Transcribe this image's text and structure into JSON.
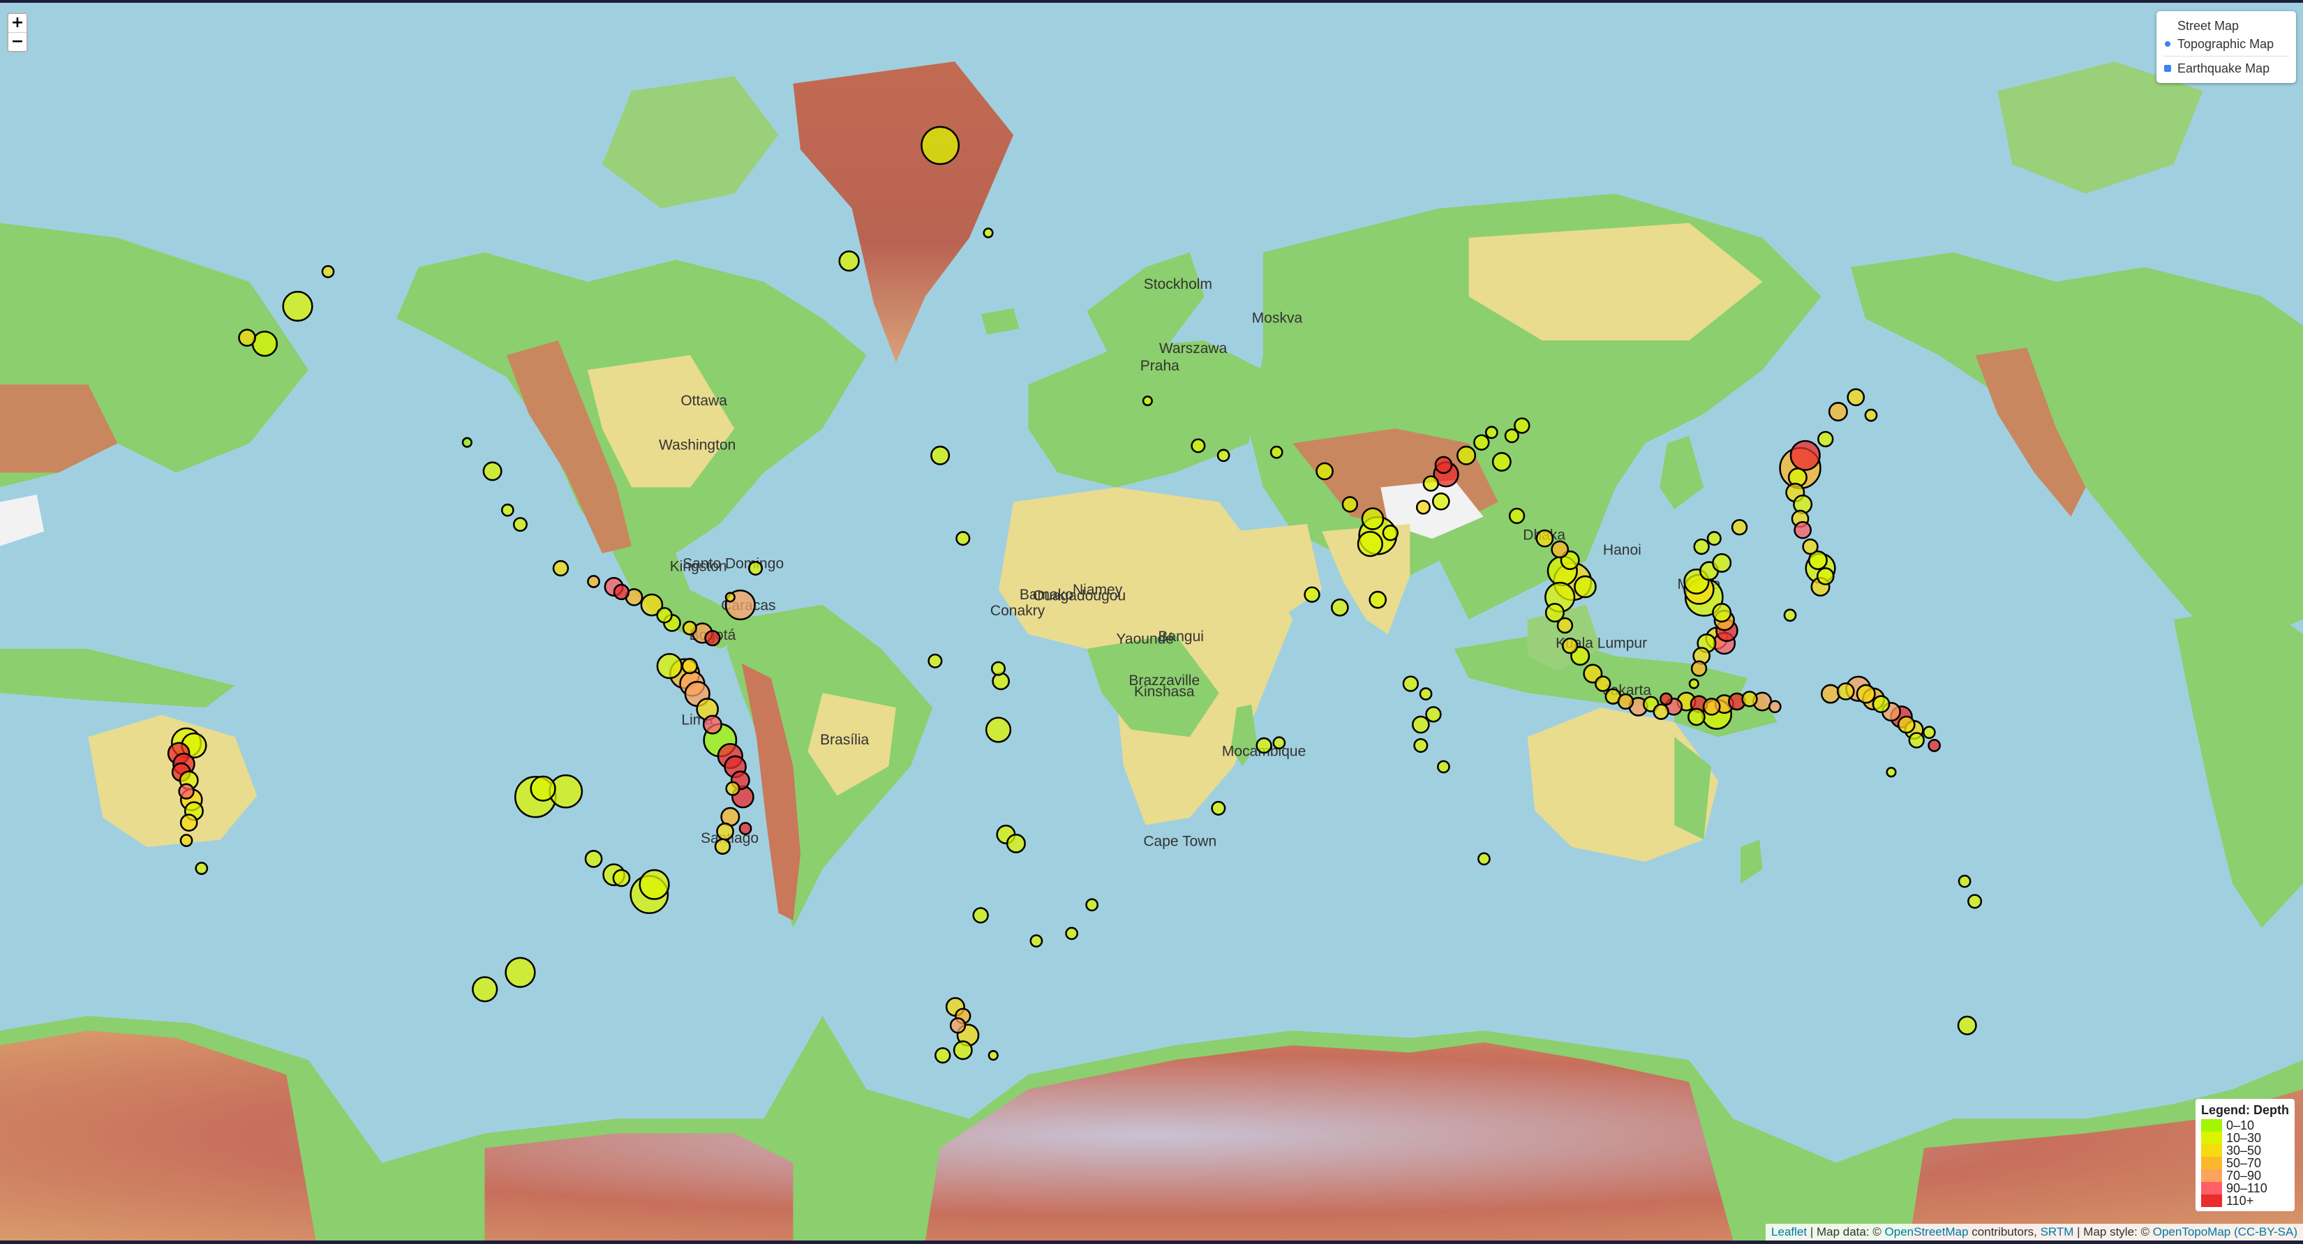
{
  "zoom": {
    "in_label": "+",
    "out_label": "−"
  },
  "layers": {
    "base": [
      {
        "label": "Street Map",
        "selected": false
      },
      {
        "label": "Topographic Map",
        "selected": true
      }
    ],
    "overlays": [
      {
        "label": "Earthquake Map",
        "checked": true
      }
    ]
  },
  "legend": {
    "title": "Legend: Depth",
    "items": [
      {
        "label": "0–10",
        "color": "#a3f600"
      },
      {
        "label": "10–30",
        "color": "#dcf400"
      },
      {
        "label": "30–50",
        "color": "#f7db11"
      },
      {
        "label": "50–70",
        "color": "#fdb72a"
      },
      {
        "label": "70–90",
        "color": "#fca35d"
      },
      {
        "label": "90–110",
        "color": "#ff5f65"
      },
      {
        "label": "110+",
        "color": "#ea2c2c"
      }
    ]
  },
  "attribution": {
    "leaflet": "Leaflet",
    "sep1": " | Map data: © ",
    "osm": "OpenStreetMap",
    "contrib": " contributors, ",
    "srtm": "SRTM",
    "sep2": " | Map style: © ",
    "otm": "OpenTopoMap",
    "license": "(CC-BY-SA)"
  },
  "city_labels": [
    "Bamako",
    "Niamey",
    "Ouagadougou",
    "Conakry",
    "Bangui",
    "Yaoundé",
    "Brazzaville",
    "Kinshasa",
    "Cape Town",
    "Mocambique",
    "Ottawa",
    "Washington",
    "Brasília",
    "Santiago",
    "Lima",
    "Bogotá",
    "Caracas",
    "Kingston",
    "Santo Domingo",
    "Stockholm",
    "Moskva",
    "Warszawa",
    "Praha",
    "Kuala Lumpur",
    "Jakarta",
    "Manila",
    "Dhaka",
    "Hanoi"
  ],
  "colors": {
    "ocean": "#a0d0e0",
    "land_low": "#8ccf6e",
    "land_mid": "#e9dc8f",
    "land_high": "#c9785a",
    "ice": "#f2f2f2"
  },
  "quakes": [
    {
      "lon": -166.0,
      "lat": 54.0,
      "mag": 4.5,
      "depth": 35
    },
    {
      "lon": -162.5,
      "lat": 53.3,
      "mag": 5.0,
      "depth": 20
    },
    {
      "lon": -150.0,
      "lat": 61.0,
      "mag": 4.2,
      "depth": 40
    },
    {
      "lon": -156.0,
      "lat": 57.5,
      "mag": 5.3,
      "depth": 15
    },
    {
      "lon": -122.5,
      "lat": 40.0,
      "mag": 4.0,
      "depth": 8
    },
    {
      "lon": -117.5,
      "lat": 35.5,
      "mag": 4.6,
      "depth": 12
    },
    {
      "lon": -114.5,
      "lat": 29.0,
      "mag": 4.2,
      "depth": 10
    },
    {
      "lon": -112.0,
      "lat": 26.5,
      "mag": 4.3,
      "depth": 10
    },
    {
      "lon": -104.0,
      "lat": 18.5,
      "mag": 4.4,
      "depth": 35
    },
    {
      "lon": -97.5,
      "lat": 16.0,
      "mag": 4.2,
      "depth": 60
    },
    {
      "lon": -93.5,
      "lat": 15.0,
      "mag": 4.6,
      "depth": 100
    },
    {
      "lon": -92.0,
      "lat": 14.0,
      "mag": 4.4,
      "depth": 120
    },
    {
      "lon": -89.5,
      "lat": 13.0,
      "mag": 4.5,
      "depth": 50
    },
    {
      "lon": -86.0,
      "lat": 11.5,
      "mag": 4.8,
      "depth": 40
    },
    {
      "lon": -83.5,
      "lat": 9.5,
      "mag": 4.4,
      "depth": 20
    },
    {
      "lon": -82.0,
      "lat": 8.0,
      "mag": 4.5,
      "depth": 25
    },
    {
      "lon": -78.5,
      "lat": 7.0,
      "mag": 4.3,
      "depth": 30
    },
    {
      "lon": -76.0,
      "lat": 6.0,
      "mag": 4.7,
      "depth": 80
    },
    {
      "lon": -74.0,
      "lat": 5.0,
      "mag": 4.4,
      "depth": 110
    },
    {
      "lon": -70.5,
      "lat": 13.0,
      "mag": 4.0,
      "depth": 30
    },
    {
      "lon": -65.5,
      "lat": 18.5,
      "mag": 4.3,
      "depth": 10
    },
    {
      "lon": -68.5,
      "lat": 11.5,
      "mag": 5.3,
      "depth": 75
    },
    {
      "lon": -82.5,
      "lat": -0.5,
      "mag": 5.0,
      "depth": 15
    },
    {
      "lon": -79.5,
      "lat": -2.0,
      "mag": 5.3,
      "depth": 55
    },
    {
      "lon": -78.0,
      "lat": -4.0,
      "mag": 5.0,
      "depth": 70
    },
    {
      "lon": -77.0,
      "lat": -6.0,
      "mag": 5.0,
      "depth": 75
    },
    {
      "lon": -75.0,
      "lat": -9.0,
      "mag": 4.8,
      "depth": 40
    },
    {
      "lon": -74.0,
      "lat": -12.0,
      "mag": 4.6,
      "depth": 100
    },
    {
      "lon": -72.5,
      "lat": -15.0,
      "mag": 5.5,
      "depth": 8
    },
    {
      "lon": -70.5,
      "lat": -18.0,
      "mag": 5.0,
      "depth": 110
    },
    {
      "lon": -69.5,
      "lat": -20.0,
      "mag": 4.8,
      "depth": 120
    },
    {
      "lon": -68.5,
      "lat": -22.5,
      "mag": 4.6,
      "depth": 130
    },
    {
      "lon": -70.0,
      "lat": -24.0,
      "mag": 4.3,
      "depth": 40
    },
    {
      "lon": -68.0,
      "lat": -25.5,
      "mag": 4.8,
      "depth": 120
    },
    {
      "lon": -70.5,
      "lat": -29.0,
      "mag": 4.6,
      "depth": 60
    },
    {
      "lon": -71.5,
      "lat": -31.5,
      "mag": 4.5,
      "depth": 40
    },
    {
      "lon": -72.0,
      "lat": -34.0,
      "mag": 4.4,
      "depth": 30
    },
    {
      "lon": -67.5,
      "lat": -31.0,
      "mag": 4.2,
      "depth": 120
    },
    {
      "lon": -109.0,
      "lat": -25.5,
      "mag": 6.0,
      "depth": 15
    },
    {
      "lon": -107.5,
      "lat": -24.0,
      "mag": 5.0,
      "depth": 10
    },
    {
      "lon": -103.0,
      "lat": -24.5,
      "mag": 5.5,
      "depth": 10
    },
    {
      "lon": -97.5,
      "lat": -36.0,
      "mag": 4.5,
      "depth": 10
    },
    {
      "lon": -93.5,
      "lat": -38.5,
      "mag": 4.8,
      "depth": 10
    },
    {
      "lon": -92.0,
      "lat": -39.0,
      "mag": 4.5,
      "depth": 10
    },
    {
      "lon": -86.5,
      "lat": -41.5,
      "mag": 5.8,
      "depth": 10
    },
    {
      "lon": -85.5,
      "lat": -40.0,
      "mag": 5.3,
      "depth": 10
    },
    {
      "lon": -119.0,
      "lat": -54.0,
      "mag": 5.0,
      "depth": 10
    },
    {
      "lon": -112.0,
      "lat": -52.0,
      "mag": 5.3,
      "depth": 10
    },
    {
      "lon": -78.5,
      "lat": -0.5,
      "mag": 4.4,
      "depth": 30
    },
    {
      "lon": -178.0,
      "lat": -15.5,
      "mag": 5.3,
      "depth": 10
    },
    {
      "lon": -176.5,
      "lat": -16.0,
      "mag": 5.0,
      "depth": 20
    },
    {
      "lon": -179.5,
      "lat": -17.5,
      "mag": 4.8,
      "depth": 300
    },
    {
      "lon": -178.5,
      "lat": -19.5,
      "mag": 4.8,
      "depth": 200
    },
    {
      "lon": -179.0,
      "lat": -21.0,
      "mag": 4.6,
      "depth": 400
    },
    {
      "lon": -177.5,
      "lat": -22.5,
      "mag": 4.6,
      "depth": 20
    },
    {
      "lon": -178.0,
      "lat": -24.5,
      "mag": 4.4,
      "depth": 100
    },
    {
      "lon": -177.0,
      "lat": -26.0,
      "mag": 4.8,
      "depth": 30
    },
    {
      "lon": -176.5,
      "lat": -28.0,
      "mag": 4.6,
      "depth": 15
    },
    {
      "lon": -177.5,
      "lat": -30.0,
      "mag": 4.5,
      "depth": 40
    },
    {
      "lon": -178.0,
      "lat": -33.0,
      "mag": 4.2,
      "depth": 30
    },
    {
      "lon": -175.0,
      "lat": -37.5,
      "mag": 4.2,
      "depth": 10
    },
    {
      "lon": -29.0,
      "lat": 71.0,
      "mag": 5.8,
      "depth": 10
    },
    {
      "lon": -26.0,
      "lat": 80.0,
      "mag": 4.5,
      "depth": 10
    },
    {
      "lon": -34.0,
      "lat": 85.0,
      "mag": 4.0,
      "depth": 10
    },
    {
      "lon": -47.0,
      "lat": 62.0,
      "mag": 4.7,
      "depth": 10
    },
    {
      "lon": -19.5,
      "lat": 64.5,
      "mag": 4.0,
      "depth": 10
    },
    {
      "lon": -29.0,
      "lat": 38.0,
      "mag": 4.6,
      "depth": 10
    },
    {
      "lon": -24.5,
      "lat": 24.0,
      "mag": 4.3,
      "depth": 10
    },
    {
      "lon": -30.0,
      "lat": 0.5,
      "mag": 4.3,
      "depth": 10
    },
    {
      "lon": -17.5,
      "lat": -1.0,
      "mag": 4.3,
      "depth": 10
    },
    {
      "lon": -17.0,
      "lat": -3.5,
      "mag": 4.5,
      "depth": 10
    },
    {
      "lon": -17.5,
      "lat": -13.0,
      "mag": 5.0,
      "depth": 10
    },
    {
      "lon": -16.0,
      "lat": -32.0,
      "mag": 4.6,
      "depth": 10
    },
    {
      "lon": -14.0,
      "lat": -33.5,
      "mag": 4.6,
      "depth": 10
    },
    {
      "lon": -21.0,
      "lat": -44.5,
      "mag": 4.4,
      "depth": 10
    },
    {
      "lon": -26.0,
      "lat": -56.0,
      "mag": 4.6,
      "depth": 40
    },
    {
      "lon": -24.5,
      "lat": -57.0,
      "mag": 4.4,
      "depth": 60
    },
    {
      "lon": -23.5,
      "lat": -59.0,
      "mag": 4.8,
      "depth": 30
    },
    {
      "lon": -24.5,
      "lat": -60.5,
      "mag": 4.6,
      "depth": 20
    },
    {
      "lon": -28.5,
      "lat": -61.0,
      "mag": 4.4,
      "depth": 10
    },
    {
      "lon": -18.5,
      "lat": -61.0,
      "mag": 4.0,
      "depth": 10
    },
    {
      "lon": -25.5,
      "lat": -58.0,
      "mag": 4.4,
      "depth": 80
    },
    {
      "lon": -10.0,
      "lat": -48.0,
      "mag": 4.2,
      "depth": 10
    },
    {
      "lon": -3.0,
      "lat": -47.0,
      "mag": 4.2,
      "depth": 10
    },
    {
      "lon": 1.0,
      "lat": -43.0,
      "mag": 4.2,
      "depth": 10
    },
    {
      "lon": 12.0,
      "lat": 46.0,
      "mag": 4.0,
      "depth": 10
    },
    {
      "lon": 22.0,
      "lat": 39.5,
      "mag": 4.3,
      "depth": 10
    },
    {
      "lon": 27.0,
      "lat": 38.0,
      "mag": 4.2,
      "depth": 15
    },
    {
      "lon": 37.5,
      "lat": 38.5,
      "mag": 4.2,
      "depth": 10
    },
    {
      "lon": 47.0,
      "lat": 35.5,
      "mag": 4.5,
      "depth": 10
    },
    {
      "lon": 52.0,
      "lat": 30.0,
      "mag": 4.4,
      "depth": 10
    },
    {
      "lon": 56.5,
      "lat": 27.5,
      "mag": 4.8,
      "depth": 10
    },
    {
      "lon": 57.5,
      "lat": 24.5,
      "mag": 5.8,
      "depth": 10
    },
    {
      "lon": 56.0,
      "lat": 23.0,
      "mag": 5.0,
      "depth": 10
    },
    {
      "lon": 60.0,
      "lat": 25.0,
      "mag": 4.4,
      "depth": 10
    },
    {
      "lon": 44.5,
      "lat": 13.5,
      "mag": 4.4,
      "depth": 10
    },
    {
      "lon": 50.0,
      "lat": 11.0,
      "mag": 4.5,
      "depth": 10
    },
    {
      "lon": 57.5,
      "lat": 12.5,
      "mag": 4.5,
      "depth": 10
    },
    {
      "lon": 64.0,
      "lat": -4.0,
      "mag": 4.4,
      "depth": 10
    },
    {
      "lon": 67.0,
      "lat": -6.0,
      "mag": 4.2,
      "depth": 10
    },
    {
      "lon": 68.5,
      "lat": -10.0,
      "mag": 4.4,
      "depth": 10
    },
    {
      "lon": 66.0,
      "lat": -12.0,
      "mag": 4.5,
      "depth": 10
    },
    {
      "lon": 66.0,
      "lat": -16.0,
      "mag": 4.3,
      "depth": 10
    },
    {
      "lon": 70.5,
      "lat": -20.0,
      "mag": 4.2,
      "depth": 10
    },
    {
      "lon": 78.5,
      "lat": -36.0,
      "mag": 4.2,
      "depth": 10
    },
    {
      "lon": 35.0,
      "lat": -16.0,
      "mag": 4.4,
      "depth": 10
    },
    {
      "lon": 38.0,
      "lat": -15.5,
      "mag": 4.2,
      "depth": 10
    },
    {
      "lon": 26.0,
      "lat": -27.5,
      "mag": 4.3,
      "depth": 10
    },
    {
      "lon": 70.5,
      "lat": 36.5,
      "mag": 4.5,
      "depth": 200
    },
    {
      "lon": 71.0,
      "lat": 35.0,
      "mag": 5.0,
      "depth": 110
    },
    {
      "lon": 68.0,
      "lat": 33.5,
      "mag": 4.4,
      "depth": 20
    },
    {
      "lon": 66.5,
      "lat": 29.5,
      "mag": 4.3,
      "depth": 30
    },
    {
      "lon": 70.0,
      "lat": 30.5,
      "mag": 4.5,
      "depth": 15
    },
    {
      "lon": 75.0,
      "lat": 38.0,
      "mag": 4.6,
      "depth": 10
    },
    {
      "lon": 78.0,
      "lat": 40.0,
      "mag": 4.4,
      "depth": 20
    },
    {
      "lon": 80.0,
      "lat": 41.5,
      "mag": 4.2,
      "depth": 20
    },
    {
      "lon": 84.0,
      "lat": 41.0,
      "mag": 4.3,
      "depth": 10
    },
    {
      "lon": 86.0,
      "lat": 42.5,
      "mag": 4.4,
      "depth": 10
    },
    {
      "lon": 82.0,
      "lat": 37.0,
      "mag": 4.6,
      "depth": 10
    },
    {
      "lon": 85.0,
      "lat": 28.0,
      "mag": 4.4,
      "depth": 10
    },
    {
      "lon": 90.5,
      "lat": 24.0,
      "mag": 4.5,
      "depth": 30
    },
    {
      "lon": 93.5,
      "lat": 22.0,
      "mag": 4.5,
      "depth": 60
    },
    {
      "lon": 95.5,
      "lat": 20.0,
      "mag": 4.6,
      "depth": 20
    },
    {
      "lon": 94.0,
      "lat": 18.0,
      "mag": 5.3,
      "depth": 10
    },
    {
      "lon": 96.0,
      "lat": 16.0,
      "mag": 5.8,
      "depth": 30
    },
    {
      "lon": 98.5,
      "lat": 15.0,
      "mag": 4.8,
      "depth": 10
    },
    {
      "lon": 93.5,
      "lat": 13.0,
      "mag": 5.3,
      "depth": 10
    },
    {
      "lon": 92.5,
      "lat": 10.0,
      "mag": 4.6,
      "depth": 20
    },
    {
      "lon": 94.5,
      "lat": 7.5,
      "mag": 4.4,
      "depth": 30
    },
    {
      "lon": 95.5,
      "lat": 3.5,
      "mag": 4.4,
      "depth": 30
    },
    {
      "lon": 97.5,
      "lat": 1.5,
      "mag": 4.6,
      "depth": 20
    },
    {
      "lon": 100.0,
      "lat": -2.0,
      "mag": 4.6,
      "depth": 40
    },
    {
      "lon": 102.0,
      "lat": -4.0,
      "mag": 4.4,
      "depth": 30
    },
    {
      "lon": 104.0,
      "lat": -6.5,
      "mag": 4.4,
      "depth": 40
    },
    {
      "lon": 106.5,
      "lat": -7.5,
      "mag": 4.4,
      "depth": 60
    },
    {
      "lon": 109.0,
      "lat": -8.5,
      "mag": 4.6,
      "depth": 80
    },
    {
      "lon": 111.5,
      "lat": -8.0,
      "mag": 4.4,
      "depth": 20
    },
    {
      "lon": 113.5,
      "lat": -9.5,
      "mag": 4.4,
      "depth": 40
    },
    {
      "lon": 116.0,
      "lat": -8.5,
      "mag": 4.5,
      "depth": 100
    },
    {
      "lon": 118.5,
      "lat": -7.5,
      "mag": 4.6,
      "depth": 30
    },
    {
      "lon": 121.0,
      "lat": -8.0,
      "mag": 4.5,
      "depth": 110
    },
    {
      "lon": 123.5,
      "lat": -8.5,
      "mag": 4.5,
      "depth": 60
    },
    {
      "lon": 126.0,
      "lat": -8.0,
      "mag": 4.6,
      "depth": 50
    },
    {
      "lon": 128.5,
      "lat": -7.5,
      "mag": 4.5,
      "depth": 120
    },
    {
      "lon": 131.0,
      "lat": -7.0,
      "mag": 4.4,
      "depth": 30
    },
    {
      "lon": 133.5,
      "lat": -7.5,
      "mag": 4.6,
      "depth": 70
    },
    {
      "lon": 136.0,
      "lat": -8.5,
      "mag": 4.2,
      "depth": 80
    },
    {
      "lon": 124.5,
      "lat": -10.0,
      "mag": 5.3,
      "depth": 10
    },
    {
      "lon": 120.5,
      "lat": -10.5,
      "mag": 4.5,
      "depth": 20
    },
    {
      "lon": 114.5,
      "lat": -7.0,
      "mag": 4.2,
      "depth": 300
    },
    {
      "lon": 120.0,
      "lat": -4.0,
      "mag": 4.0,
      "depth": 10
    },
    {
      "lon": 121.0,
      "lat": -1.0,
      "mag": 4.4,
      "depth": 50
    },
    {
      "lon": 121.5,
      "lat": 1.5,
      "mag": 4.5,
      "depth": 40
    },
    {
      "lon": 122.5,
      "lat": 4.0,
      "mag": 4.6,
      "depth": 20
    },
    {
      "lon": 124.5,
      "lat": 5.0,
      "mag": 4.8,
      "depth": 40
    },
    {
      "lon": 126.0,
      "lat": 4.0,
      "mag": 4.8,
      "depth": 100
    },
    {
      "lon": 126.5,
      "lat": 6.5,
      "mag": 4.8,
      "depth": 110
    },
    {
      "lon": 126.0,
      "lat": 8.5,
      "mag": 4.7,
      "depth": 50
    },
    {
      "lon": 125.5,
      "lat": 10.0,
      "mag": 4.6,
      "depth": 20
    },
    {
      "lon": 122.0,
      "lat": 13.0,
      "mag": 5.8,
      "depth": 20
    },
    {
      "lon": 121.0,
      "lat": 14.5,
      "mag": 5.3,
      "depth": 30
    },
    {
      "lon": 120.5,
      "lat": 16.0,
      "mag": 5.0,
      "depth": 10
    },
    {
      "lon": 123.0,
      "lat": 18.0,
      "mag": 4.6,
      "depth": 10
    },
    {
      "lon": 121.5,
      "lat": 22.5,
      "mag": 4.4,
      "depth": 20
    },
    {
      "lon": 124.0,
      "lat": 24.0,
      "mag": 4.3,
      "depth": 10
    },
    {
      "lon": 129.0,
      "lat": 26.0,
      "mag": 4.4,
      "depth": 30
    },
    {
      "lon": 125.5,
      "lat": 19.5,
      "mag": 4.6,
      "depth": 20
    },
    {
      "lon": 141.0,
      "lat": 36.0,
      "mag": 6.0,
      "depth": 50
    },
    {
      "lon": 142.0,
      "lat": 38.0,
      "mag": 5.3,
      "depth": 130
    },
    {
      "lon": 140.5,
      "lat": 34.5,
      "mag": 4.6,
      "depth": 20
    },
    {
      "lon": 140.0,
      "lat": 32.0,
      "mag": 4.6,
      "depth": 30
    },
    {
      "lon": 141.5,
      "lat": 30.0,
      "mag": 4.6,
      "depth": 10
    },
    {
      "lon": 141.0,
      "lat": 27.5,
      "mag": 4.5,
      "depth": 40
    },
    {
      "lon": 141.5,
      "lat": 25.5,
      "mag": 4.5,
      "depth": 100
    },
    {
      "lon": 143.0,
      "lat": 22.5,
      "mag": 4.4,
      "depth": 30
    },
    {
      "lon": 144.5,
      "lat": 20.0,
      "mag": 4.6,
      "depth": 10
    },
    {
      "lon": 145.0,
      "lat": 18.5,
      "mag": 5.3,
      "depth": 20
    },
    {
      "lon": 146.0,
      "lat": 17.0,
      "mag": 4.5,
      "depth": 10
    },
    {
      "lon": 145.0,
      "lat": 15.0,
      "mag": 4.6,
      "depth": 40
    },
    {
      "lon": 139.0,
      "lat": 9.5,
      "mag": 4.2,
      "depth": 10
    },
    {
      "lon": 146.0,
      "lat": 40.5,
      "mag": 4.4,
      "depth": 20
    },
    {
      "lon": 148.5,
      "lat": 44.5,
      "mag": 4.6,
      "depth": 50
    },
    {
      "lon": 152.0,
      "lat": 46.5,
      "mag": 4.5,
      "depth": 40
    },
    {
      "lon": 155.0,
      "lat": 44.0,
      "mag": 4.2,
      "depth": 30
    },
    {
      "lon": 147.0,
      "lat": -6.0,
      "mag": 4.6,
      "depth": 60
    },
    {
      "lon": 150.0,
      "lat": -5.5,
      "mag": 4.5,
      "depth": 40
    },
    {
      "lon": 152.5,
      "lat": -5.0,
      "mag": 5.0,
      "depth": 80
    },
    {
      "lon": 154.0,
      "lat": -6.0,
      "mag": 4.6,
      "depth": 30
    },
    {
      "lon": 155.5,
      "lat": -7.0,
      "mag": 4.8,
      "depth": 50
    },
    {
      "lon": 157.0,
      "lat": -8.0,
      "mag": 4.5,
      "depth": 20
    },
    {
      "lon": 159.0,
      "lat": -9.5,
      "mag": 4.6,
      "depth": 70
    },
    {
      "lon": 161.0,
      "lat": -10.5,
      "mag": 4.8,
      "depth": 110
    },
    {
      "lon": 162.0,
      "lat": -12.0,
      "mag": 4.5,
      "depth": 40
    },
    {
      "lon": 163.5,
      "lat": -13.0,
      "mag": 4.6,
      "depth": 30
    },
    {
      "lon": 164.0,
      "lat": -15.0,
      "mag": 4.4,
      "depth": 20
    },
    {
      "lon": 166.5,
      "lat": -13.5,
      "mag": 4.2,
      "depth": 10
    },
    {
      "lon": 167.5,
      "lat": -16.0,
      "mag": 4.2,
      "depth": 200
    },
    {
      "lon": 159.0,
      "lat": -21.0,
      "mag": 4.0,
      "depth": 10
    },
    {
      "lon": 173.5,
      "lat": -39.5,
      "mag": 4.2,
      "depth": 10
    },
    {
      "lon": 175.5,
      "lat": -42.5,
      "mag": 4.3,
      "depth": 10
    },
    {
      "lon": 174.0,
      "lat": -58.0,
      "mag": 4.6,
      "depth": 10
    }
  ]
}
